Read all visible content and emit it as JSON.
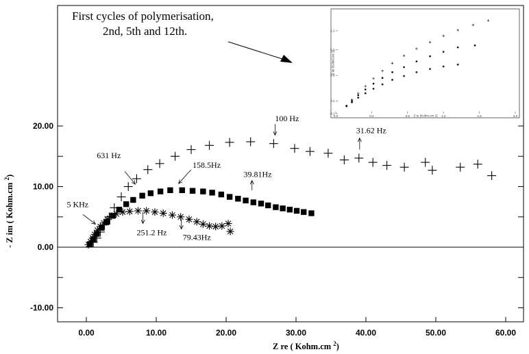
{
  "chart_data": [
    {
      "type": "scatter",
      "xlabel": "Z re ( Kohm.cm ",
      "xlabel_sup": "2",
      "xlabel_end": ")",
      "ylabel": "- Z im ( Kohm.cm ",
      "ylabel_sup": "2",
      "ylabel_end": ")",
      "xlim": [
        -4,
        62
      ],
      "ylim": [
        -14,
        34
      ],
      "xticks": [
        0,
        10,
        20,
        30,
        40,
        50,
        60
      ],
      "xtick_labels": [
        "0.00",
        "10.00",
        "20.00",
        "30.00",
        "40.00",
        "50.00",
        "60.00"
      ],
      "yticks": [
        -10,
        -5,
        0,
        5,
        10,
        15,
        20
      ],
      "ytick_labels": [
        "-10.00",
        "",
        "0.00",
        "",
        "10.00",
        "",
        "20.00"
      ],
      "grid": false,
      "series": [
        {
          "marker": "plus",
          "x": [
            1.0,
            1.5,
            2.0,
            2.6,
            3.3,
            4.0,
            5.0,
            6.0,
            7.2,
            8.8,
            10.5,
            12.7,
            15.0,
            17.6,
            20.5,
            23.5,
            26.8,
            29.8,
            32.0,
            34.6,
            36.9,
            39.0,
            41.0,
            43.0,
            45.5,
            48.5,
            49.5,
            53.5,
            56.0,
            58.0
          ],
          "y": [
            0.8,
            1.5,
            2.5,
            3.7,
            5.0,
            6.5,
            8.3,
            10.0,
            11.3,
            12.8,
            13.8,
            15.0,
            16.1,
            16.8,
            17.3,
            17.4,
            17.1,
            16.3,
            15.8,
            15.5,
            14.4,
            14.7,
            14.0,
            13.5,
            13.2,
            14.0,
            12.7,
            13.2,
            13.7,
            11.8
          ]
        },
        {
          "marker": "square",
          "x": [
            0.5,
            1.0,
            1.5,
            2.2,
            3.0,
            3.8,
            4.7,
            5.7,
            6.7,
            8.0,
            9.2,
            10.6,
            12.0,
            13.7,
            15.2,
            16.7,
            18.0,
            19.3,
            20.5,
            21.7,
            22.8,
            23.9,
            25.0,
            26.0,
            27.1,
            28.1,
            29.1,
            30.1,
            31.1,
            32.2
          ],
          "y": [
            0.5,
            1.3,
            2.2,
            3.2,
            4.2,
            5.2,
            6.2,
            7.1,
            7.8,
            8.5,
            8.9,
            9.2,
            9.4,
            9.4,
            9.3,
            9.2,
            9.0,
            8.7,
            8.3,
            8.0,
            7.7,
            7.4,
            7.2,
            6.9,
            6.6,
            6.4,
            6.2,
            6.0,
            5.8,
            5.6
          ]
        },
        {
          "marker": "asterisk",
          "x": [
            0.3,
            0.6,
            0.9,
            1.2,
            1.6,
            2.0,
            2.5,
            3.0,
            3.6,
            4.3,
            5.2,
            6.2,
            7.4,
            8.6,
            9.8,
            11.0,
            12.3,
            13.5,
            14.7,
            15.8,
            16.7,
            17.6,
            18.5,
            19.4,
            20.3,
            20.6
          ],
          "y": [
            0.4,
            0.9,
            1.5,
            2.1,
            2.8,
            3.4,
            4.0,
            4.6,
            5.1,
            5.5,
            5.8,
            5.9,
            6.0,
            6.0,
            5.8,
            5.6,
            5.3,
            5.0,
            4.6,
            4.2,
            3.8,
            3.5,
            3.4,
            3.5,
            3.9,
            2.6
          ]
        }
      ],
      "annotations": [
        {
          "text": "100 Hz",
          "x": 27,
          "y": 20.8,
          "arrow_from": [
            27,
            20.3
          ],
          "arrow_to": [
            27,
            18.5
          ]
        },
        {
          "text": "31.62 Hz",
          "x": 38.6,
          "y": 18.8,
          "arrow_from": [
            39.1,
            16.1
          ],
          "arrow_to": [
            39.1,
            18.0
          ]
        },
        {
          "text": "631 Hz",
          "x": 1.5,
          "y": 14.7,
          "arrow_from": [
            5.5,
            12.5
          ],
          "arrow_to": [
            7.0,
            10.4
          ]
        },
        {
          "text": "158.5Hz",
          "x": 15.2,
          "y": 13.1,
          "arrow_from": [
            15.0,
            12.8
          ],
          "arrow_to": [
            13.2,
            10.5
          ]
        },
        {
          "text": "39.81Hz",
          "x": 22.5,
          "y": 11.6,
          "arrow_from": [
            23.7,
            9.4
          ],
          "arrow_to": [
            23.7,
            11.0
          ]
        },
        {
          "text": "5 KHz",
          "x": -2.8,
          "y": 6.6,
          "arrow_from": [
            -0.5,
            5.4
          ],
          "arrow_to": [
            1.3,
            3.8
          ]
        },
        {
          "text": "251.2 Hz",
          "x": 7.2,
          "y": 2.0,
          "arrow_from": [
            8.1,
            5.8
          ],
          "arrow_to": [
            8.1,
            3.9
          ]
        },
        {
          "text": "79.43Hz",
          "x": 13.8,
          "y": 1.2,
          "arrow_from": [
            13.6,
            4.6
          ],
          "arrow_to": [
            13.6,
            3.0
          ]
        }
      ]
    },
    {
      "type": "scatter",
      "caption": [
        "First cycles of  polymerisation,",
        "2nd, 5th and 12th."
      ],
      "xlim": [
        0,
        2.0
      ],
      "ylim": [
        -0.1,
        1.5
      ],
      "xticks": [
        0.0,
        0.4,
        0.8,
        1.2,
        1.6,
        2.0
      ],
      "xtick_labels": [
        "0.0",
        "0.4",
        "0.8",
        "1.2",
        "1.6",
        "2.0"
      ],
      "yticks": [
        -0.1,
        0.1,
        0.5,
        0.9,
        1.2
      ],
      "ytick_labels": [
        "-0.1",
        "0.1",
        "0.5",
        "0.9",
        "1.2"
      ],
      "xlabel": "Z re (Kohm.cm 2)",
      "ylabel": "Z im (Kohm.cm 2)",
      "series": [
        {
          "marker": "plus",
          "x": [
            0.12,
            0.18,
            0.25,
            0.33,
            0.42,
            0.52,
            0.63,
            0.76,
            0.9,
            1.05,
            1.2,
            1.36,
            1.53,
            1.7
          ],
          "y": [
            0.02,
            0.12,
            0.22,
            0.33,
            0.45,
            0.57,
            0.69,
            0.81,
            0.92,
            1.02,
            1.12,
            1.21,
            1.29,
            1.36
          ]
        },
        {
          "marker": "dot",
          "x": [
            0.12,
            0.18,
            0.25,
            0.33,
            0.42,
            0.52,
            0.63,
            0.76,
            0.9,
            1.05,
            1.2,
            1.36,
            1.55
          ],
          "y": [
            0.02,
            0.1,
            0.19,
            0.28,
            0.37,
            0.46,
            0.55,
            0.63,
            0.72,
            0.8,
            0.87,
            0.94,
            0.97
          ]
        },
        {
          "marker": "asterisk",
          "x": [
            0.12,
            0.18,
            0.25,
            0.33,
            0.42,
            0.52,
            0.63,
            0.76,
            0.9,
            1.05,
            1.2,
            1.36
          ],
          "y": [
            0.02,
            0.08,
            0.15,
            0.22,
            0.29,
            0.36,
            0.43,
            0.49,
            0.55,
            0.6,
            0.64,
            0.67
          ]
        }
      ]
    }
  ]
}
